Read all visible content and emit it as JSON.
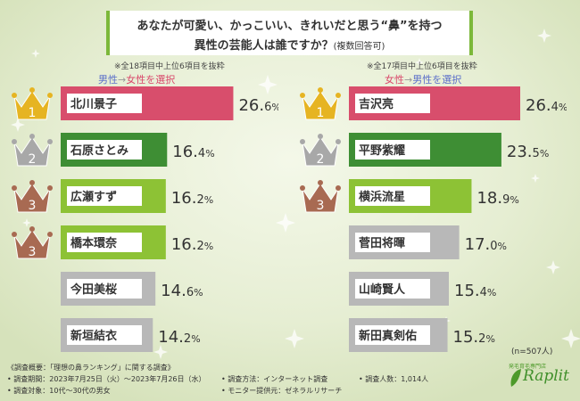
{
  "title": {
    "line1": "あなたが可愛い、かっこいい、きれいだと思う“鼻”を持つ",
    "line2": "異性の芸能人は誰ですか？",
    "line2_suffix": "(複数回答可)"
  },
  "notes": {
    "left": "※全18項目中上位6項目を抜粋",
    "right": "※全17項目中上位6項目を抜粋"
  },
  "subheads": {
    "left": {
      "from": "男性",
      "arrow": "→",
      "to": "女性を選択"
    },
    "right": {
      "from": "女性",
      "arrow": "→",
      "to": "男性を選択"
    }
  },
  "sample_size": "(n=507人)",
  "footer": {
    "overview": "《調査概要：「理想の鼻ランキング」に関する調査》",
    "period": "• 調査期間：2023年7月25日（火）〜2023年7月26日（水）",
    "target": "• 調査対象：10代〜30代の男女",
    "method": "• 調査方法：インターネット調査",
    "monitor": "• モニター提供元：ゼネラルリサーチ",
    "count": "• 調査人数：1,014人"
  },
  "brand": {
    "name": "Raplit",
    "tagline": "発毛育毛専門店"
  },
  "colors": {
    "rank1": "#d84e6c",
    "rank2": "#3e8e34",
    "rank3": "#8dc235",
    "other": "#b8b8b8",
    "gold": "#e6b422",
    "silver": "#a8a8a8",
    "bronze": "#a86a52"
  },
  "chart_data": [
    {
      "type": "bar",
      "orientation": "horizontal",
      "title": "男性→女性を選択",
      "unit": "%",
      "categories": [
        "北川景子",
        "石原さとみ",
        "広瀬すず",
        "橋本環奈",
        "今田美桜",
        "新垣結衣"
      ],
      "values": [
        26.6,
        16.4,
        16.2,
        16.2,
        14.6,
        14.2
      ],
      "ranks": [
        1,
        2,
        3,
        3,
        null,
        null
      ],
      "value_labels": [
        [
          "26.",
          "6",
          "%"
        ],
        [
          "16.",
          "4",
          "%"
        ],
        [
          "16.",
          "2",
          "%"
        ],
        [
          "16.",
          "2",
          "%"
        ],
        [
          "14.",
          "6",
          "%"
        ],
        [
          "14.",
          "2",
          "%"
        ]
      ]
    },
    {
      "type": "bar",
      "orientation": "horizontal",
      "title": "女性→男性を選択",
      "unit": "%",
      "categories": [
        "吉沢亮",
        "平野紫耀",
        "横浜流星",
        "菅田将暉",
        "山崎賢人",
        "新田真剣佑"
      ],
      "values": [
        26.4,
        23.5,
        18.9,
        17.0,
        15.4,
        15.2
      ],
      "ranks": [
        1,
        2,
        3,
        null,
        null,
        null
      ],
      "value_labels": [
        [
          "26.",
          "4",
          "%"
        ],
        [
          "23.",
          "5",
          "%"
        ],
        [
          "18.",
          "9",
          "%"
        ],
        [
          "17.",
          "0",
          "%"
        ],
        [
          "15.",
          "4",
          "%"
        ],
        [
          "15.",
          "2",
          "%"
        ]
      ]
    }
  ]
}
